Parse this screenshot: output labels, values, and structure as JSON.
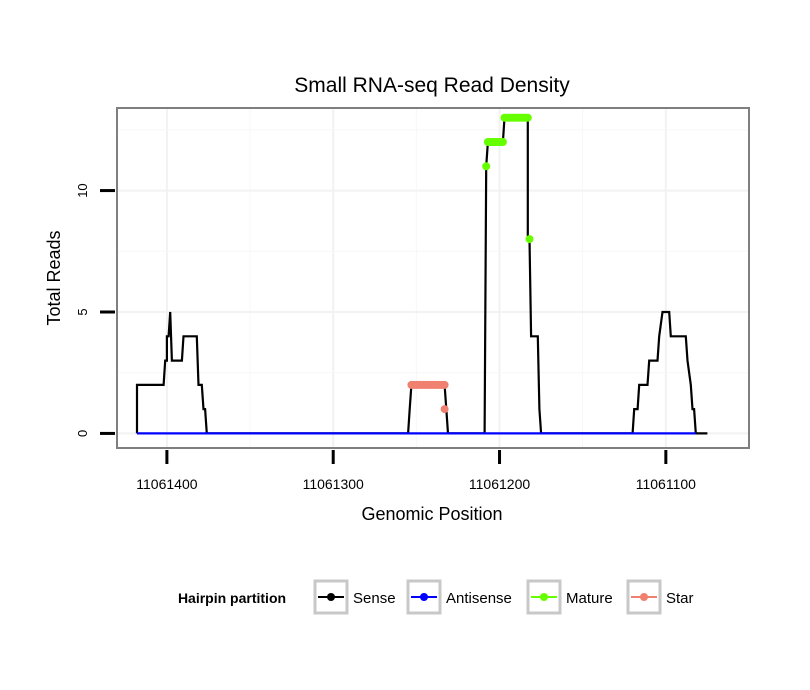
{
  "chart_data": {
    "type": "line",
    "title": "Small RNA-seq Read Density",
    "xlabel": "Genomic Position",
    "ylabel": "Total Reads",
    "xlim": [
      11061430,
      11061050
    ],
    "ylim": [
      -0.6,
      13.4
    ],
    "x_reversed": true,
    "x_ticks": [
      11061400,
      11061300,
      11061200,
      11061100
    ],
    "x_tick_labels": [
      "11061400",
      "11061300",
      "11061200",
      "11061100"
    ],
    "y_ticks": [
      0,
      5,
      10
    ],
    "y_tick_labels": [
      "0",
      "5",
      "10"
    ],
    "grid": true,
    "legend": {
      "title": "Hairpin partition",
      "position": "bottom",
      "entries": [
        {
          "name": "Sense",
          "color": "#000000"
        },
        {
          "name": "Antisense",
          "color": "#0000ff"
        },
        {
          "name": "Mature",
          "color": "#66ff00"
        },
        {
          "name": "Star",
          "color": "#f08070"
        }
      ]
    },
    "series": [
      {
        "name": "Sense",
        "color": "#000000",
        "style": "line",
        "points": [
          [
            11061418,
            0
          ],
          [
            11061418,
            2
          ],
          [
            11061402,
            2
          ],
          [
            11061401,
            3
          ],
          [
            11061400,
            3
          ],
          [
            11061400,
            4
          ],
          [
            11061399,
            4
          ],
          [
            11061398,
            5
          ],
          [
            11061397,
            3
          ],
          [
            11061391,
            3
          ],
          [
            11061390,
            4
          ],
          [
            11061382,
            4
          ],
          [
            11061381,
            2
          ],
          [
            11061379,
            2
          ],
          [
            11061378,
            1
          ],
          [
            11061377,
            1
          ],
          [
            11061376,
            0
          ],
          [
            11061255,
            0
          ],
          [
            11061254,
            1
          ],
          [
            11061253,
            2
          ],
          [
            11061233,
            2
          ],
          [
            11061232,
            1
          ],
          [
            11061231,
            0
          ],
          [
            11061209,
            0
          ],
          [
            11061208,
            11
          ],
          [
            11061207,
            12
          ],
          [
            11061198,
            12
          ],
          [
            11061197,
            13
          ],
          [
            11061183,
            13
          ],
          [
            11061183,
            8
          ],
          [
            11061182,
            8
          ],
          [
            11061181,
            4
          ],
          [
            11061177,
            4
          ],
          [
            11061176,
            1
          ],
          [
            11061175,
            0
          ],
          [
            11061120,
            0
          ],
          [
            11061119,
            1
          ],
          [
            11061117,
            1
          ],
          [
            11061116,
            2
          ],
          [
            11061111,
            2
          ],
          [
            11061110,
            3
          ],
          [
            11061105,
            3
          ],
          [
            11061104,
            4
          ],
          [
            11061102,
            5
          ],
          [
            11061098,
            5
          ],
          [
            11061097,
            4
          ],
          [
            11061088,
            4
          ],
          [
            11061087,
            3
          ],
          [
            11061085,
            2
          ],
          [
            11061084,
            1
          ],
          [
            11061083,
            1
          ],
          [
            11061082,
            0
          ],
          [
            11061075,
            0
          ]
        ]
      },
      {
        "name": "Antisense",
        "color": "#0000ff",
        "style": "line",
        "points": [
          [
            11061418,
            0
          ],
          [
            11061082,
            0
          ]
        ]
      },
      {
        "name": "Mature",
        "color": "#66ff00",
        "style": "points",
        "points": [
          [
            11061208,
            11
          ],
          [
            11061207,
            12
          ],
          [
            11061206,
            12
          ],
          [
            11061205,
            12
          ],
          [
            11061204,
            12
          ],
          [
            11061203,
            12
          ],
          [
            11061202,
            12
          ],
          [
            11061201,
            12
          ],
          [
            11061200,
            12
          ],
          [
            11061199,
            12
          ],
          [
            11061198,
            12
          ],
          [
            11061197,
            13
          ],
          [
            11061196,
            13
          ],
          [
            11061195,
            13
          ],
          [
            11061194,
            13
          ],
          [
            11061193,
            13
          ],
          [
            11061192,
            13
          ],
          [
            11061191,
            13
          ],
          [
            11061190,
            13
          ],
          [
            11061189,
            13
          ],
          [
            11061188,
            13
          ],
          [
            11061187,
            13
          ],
          [
            11061186,
            13
          ],
          [
            11061185,
            13
          ],
          [
            11061184,
            13
          ],
          [
            11061183,
            13
          ],
          [
            11061182,
            8
          ]
        ]
      },
      {
        "name": "Star",
        "color": "#f08070",
        "style": "points",
        "points": [
          [
            11061253,
            2
          ],
          [
            11061252,
            2
          ],
          [
            11061251,
            2
          ],
          [
            11061250,
            2
          ],
          [
            11061249,
            2
          ],
          [
            11061248,
            2
          ],
          [
            11061247,
            2
          ],
          [
            11061246,
            2
          ],
          [
            11061245,
            2
          ],
          [
            11061244,
            2
          ],
          [
            11061243,
            2
          ],
          [
            11061242,
            2
          ],
          [
            11061241,
            2
          ],
          [
            11061240,
            2
          ],
          [
            11061239,
            2
          ],
          [
            11061238,
            2
          ],
          [
            11061237,
            2
          ],
          [
            11061236,
            2
          ],
          [
            11061235,
            2
          ],
          [
            11061234,
            2
          ],
          [
            11061233,
            2
          ],
          [
            11061233,
            1
          ]
        ]
      }
    ]
  }
}
